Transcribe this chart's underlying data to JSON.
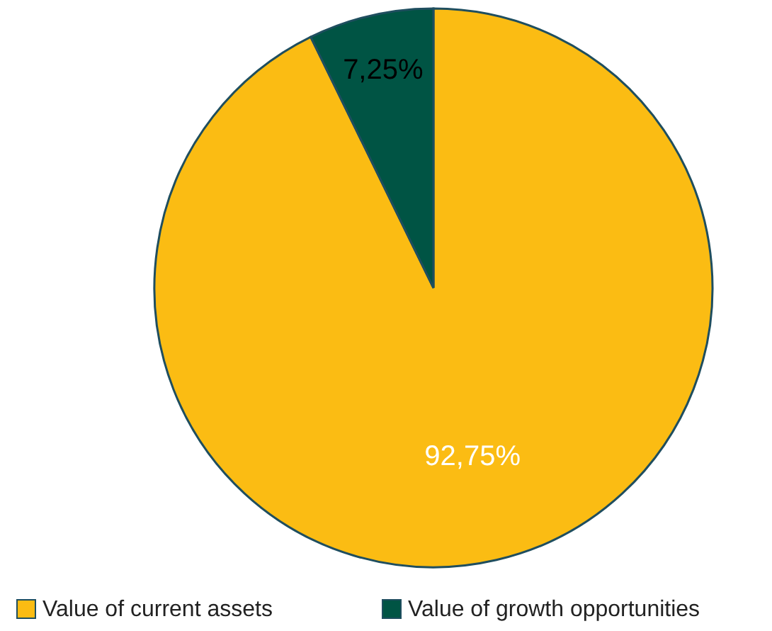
{
  "chart_data": {
    "type": "pie",
    "categories": [
      "Value of current assets",
      "Value of growth opportunities"
    ],
    "values": [
      92.75,
      7.25
    ],
    "colors": [
      "#fbbc13",
      "#005444"
    ],
    "value_labels": [
      "92,75%",
      "7,25%"
    ],
    "legend": "bottom"
  }
}
